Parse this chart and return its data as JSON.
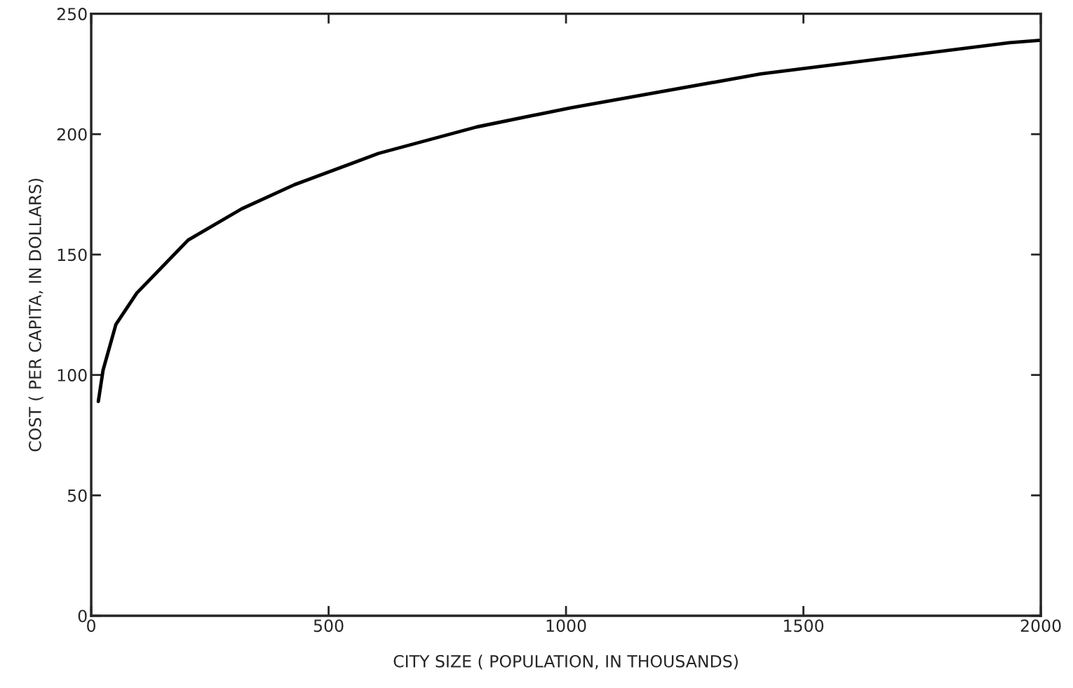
{
  "chart_data": {
    "type": "line",
    "xlabel": "CITY SIZE ( POPULATION, IN THOUSANDS)",
    "ylabel": "COST ( PER CAPITA, IN DOLLARS)",
    "x": [
      15,
      25,
      52,
      96,
      204,
      317,
      428,
      605,
      812,
      1011,
      1410,
      1934,
      2000
    ],
    "series": [
      {
        "color": "#000000",
        "values": [
          89,
          102,
          121,
          134,
          156,
          169,
          179,
          192,
          203,
          211,
          225,
          238,
          239
        ]
      }
    ],
    "xlim": [
      0,
      2000
    ],
    "ylim": [
      0,
      250
    ],
    "xticks": [
      0,
      500,
      1000,
      1500,
      2000
    ],
    "yticks": [
      0,
      50,
      100,
      150,
      200,
      250
    ],
    "grid": false,
    "legend": false,
    "marker": "none",
    "line_style": "solid"
  }
}
